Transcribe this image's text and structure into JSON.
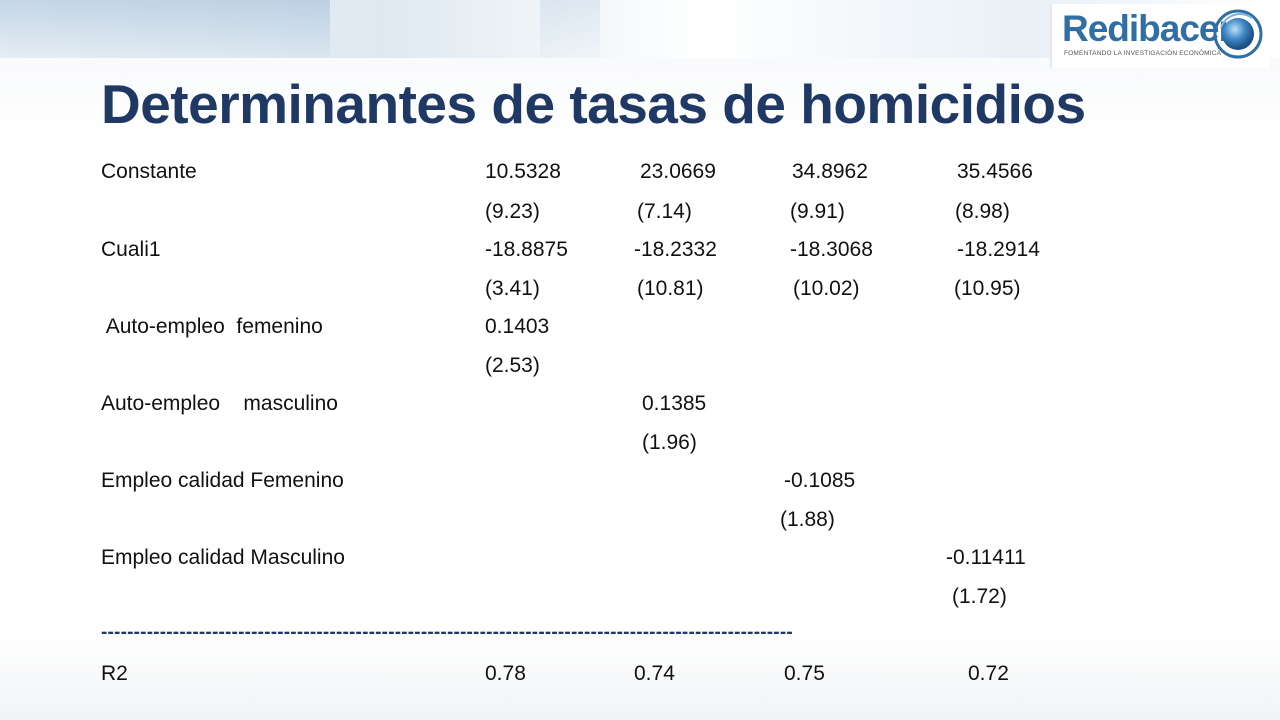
{
  "slide": {
    "title": "Determinantes de tasas de homicidios",
    "logo": {
      "name": "Redibacen",
      "tagline": "FOMENTANDO LA INVESTIGACIÓN ECONÓMICA",
      "icon": "globe-icon"
    },
    "colors": {
      "title": "#1f3864",
      "logo": "#2f6fa5",
      "text": "#111111"
    }
  },
  "table": {
    "rows": [
      {
        "label": "Constante",
        "coef": [
          "10.5328",
          "23.0669",
          "34.8962",
          "35.4566"
        ],
        "t": [
          "(9.23)",
          "(7.14)",
          "(9.91)",
          "(8.98)"
        ]
      },
      {
        "label": "Cuali1",
        "coef": [
          "-18.8875",
          "-18.2332",
          "-18.3068",
          "-18.2914"
        ],
        "t": [
          "(3.41)",
          "(10.81)",
          "(10.02)",
          "(10.95)"
        ]
      },
      {
        "label": "Auto-empleo  femenino",
        "coef": [
          "0.1403",
          "",
          "",
          ""
        ],
        "t": [
          "(2.53)",
          "",
          "",
          ""
        ]
      },
      {
        "label": "Auto-empleo    masculino",
        "coef": [
          "",
          "0.1385",
          "",
          ""
        ],
        "t": [
          "",
          "(1.96)",
          "",
          ""
        ]
      },
      {
        "label": "Empleo calidad Femenino",
        "coef": [
          "",
          "",
          "-0.1085",
          ""
        ],
        "t": [
          "",
          "",
          "(1.88)",
          ""
        ]
      },
      {
        "label": "Empleo calidad Masculino",
        "coef": [
          "",
          "",
          "",
          "-0.11411"
        ],
        "t": [
          "",
          "",
          "",
          "(1.72)"
        ]
      }
    ],
    "divider": "----------------------------------------------------------------------------------------------------------",
    "r2": {
      "label": "R2",
      "values": [
        "0.78",
        "0.74",
        "0.75",
        "0.72"
      ]
    }
  }
}
